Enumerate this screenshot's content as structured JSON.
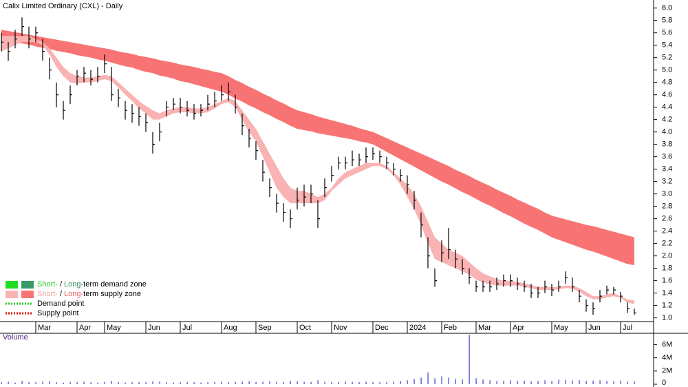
{
  "chart_data": {
    "type": "candlestick",
    "title": "Calix Limited Ordinary (CXL) - Daily",
    "categories": [
      null,
      null,
      null,
      null,
      null,
      "Mar",
      null,
      null,
      null,
      null,
      null,
      "Apr",
      null,
      null,
      null,
      "May",
      null,
      null,
      null,
      null,
      null,
      "Jun",
      null,
      null,
      null,
      null,
      "Jul",
      null,
      null,
      null,
      null,
      null,
      "Aug",
      null,
      null,
      null,
      null,
      "Sep",
      null,
      null,
      null,
      null,
      null,
      "Oct",
      null,
      null,
      null,
      null,
      "Nov",
      null,
      null,
      null,
      null,
      null,
      "Dec",
      null,
      null,
      null,
      null,
      "2024",
      null,
      null,
      null,
      null,
      "Feb",
      null,
      null,
      null,
      null,
      "Mar",
      null,
      null,
      null,
      null,
      "Apr",
      null,
      null,
      null,
      null,
      null,
      "May",
      null,
      null,
      null,
      null,
      "Jun",
      null,
      null,
      null,
      null,
      "Jul",
      null,
      null
    ],
    "price": {
      "color": "#000000",
      "high": [
        5.6,
        5.45,
        5.65,
        5.85,
        5.7,
        5.7,
        5.5,
        5.2,
        4.8,
        4.5,
        4.75,
        5.0,
        5.05,
        5.0,
        5.05,
        5.25,
        5.05,
        4.7,
        4.5,
        4.45,
        4.4,
        4.3,
        4.0,
        4.15,
        4.5,
        4.55,
        4.55,
        4.5,
        4.45,
        4.45,
        4.6,
        4.65,
        4.75,
        4.8,
        4.6,
        4.3,
        4.05,
        3.85,
        3.55,
        3.25,
        3.0,
        2.85,
        2.75,
        3.1,
        3.15,
        3.15,
        2.9,
        3.25,
        3.45,
        3.6,
        3.6,
        3.7,
        3.65,
        3.75,
        3.75,
        3.7,
        3.6,
        3.5,
        3.4,
        3.3,
        3.05,
        2.7,
        2.3,
        1.8,
        2.25,
        2.45,
        2.1,
        1.95,
        1.8,
        1.6,
        1.6,
        1.6,
        1.65,
        1.7,
        1.7,
        1.65,
        1.6,
        1.55,
        1.5,
        1.6,
        1.55,
        1.6,
        1.75,
        1.65,
        1.45,
        1.3,
        1.25,
        1.45,
        1.52,
        1.5,
        1.42,
        1.25,
        1.15
      ],
      "low": [
        5.3,
        5.15,
        5.35,
        5.55,
        5.35,
        5.45,
        5.15,
        4.85,
        4.4,
        4.2,
        4.45,
        4.75,
        4.8,
        4.75,
        4.8,
        4.95,
        4.5,
        4.4,
        4.2,
        4.15,
        4.1,
        4.0,
        3.65,
        3.85,
        4.25,
        4.35,
        4.3,
        4.25,
        4.2,
        4.25,
        4.35,
        4.4,
        4.5,
        4.5,
        4.3,
        3.95,
        3.75,
        3.55,
        3.2,
        2.95,
        2.7,
        2.55,
        2.45,
        2.75,
        2.8,
        2.85,
        2.45,
        2.95,
        3.2,
        3.4,
        3.4,
        3.45,
        3.45,
        3.5,
        3.55,
        3.5,
        3.4,
        3.3,
        3.2,
        3.0,
        2.75,
        2.3,
        1.8,
        1.5,
        1.9,
        1.95,
        1.8,
        1.7,
        1.55,
        1.42,
        1.42,
        1.42,
        1.45,
        1.5,
        1.5,
        1.45,
        1.42,
        1.32,
        1.32,
        1.4,
        1.35,
        1.42,
        1.55,
        1.42,
        1.25,
        1.1,
        1.05,
        1.25,
        1.38,
        1.38,
        1.25,
        1.08,
        1.05
      ],
      "close": [
        5.45,
        5.3,
        5.5,
        5.7,
        5.5,
        5.6,
        5.3,
        5.0,
        4.6,
        4.35,
        4.6,
        4.9,
        4.95,
        4.85,
        4.9,
        5.1,
        4.6,
        4.55,
        4.35,
        4.3,
        4.25,
        4.15,
        3.8,
        4.0,
        4.4,
        4.45,
        4.4,
        4.35,
        4.3,
        4.35,
        4.45,
        4.5,
        4.6,
        4.65,
        4.4,
        4.1,
        3.9,
        3.7,
        3.35,
        3.1,
        2.85,
        2.7,
        2.6,
        2.9,
        2.95,
        3.0,
        2.6,
        3.1,
        3.3,
        3.5,
        3.5,
        3.55,
        3.55,
        3.6,
        3.65,
        3.6,
        3.5,
        3.4,
        3.3,
        3.15,
        2.9,
        2.5,
        2.0,
        1.6,
        2.05,
        2.1,
        1.95,
        1.8,
        1.65,
        1.5,
        1.5,
        1.5,
        1.55,
        1.6,
        1.6,
        1.55,
        1.5,
        1.4,
        1.4,
        1.5,
        1.45,
        1.5,
        1.65,
        1.5,
        1.35,
        1.2,
        1.15,
        1.35,
        1.45,
        1.45,
        1.35,
        1.15,
        1.08
      ]
    },
    "long_term_zone": {
      "color": "#f87474",
      "upper": [
        5.65,
        5.63,
        5.61,
        5.59,
        5.57,
        5.55,
        5.53,
        5.51,
        5.49,
        5.47,
        5.45,
        5.43,
        5.41,
        5.39,
        5.37,
        5.35,
        5.33,
        5.3,
        5.28,
        5.26,
        5.23,
        5.21,
        5.19,
        5.16,
        5.14,
        5.12,
        5.09,
        5.07,
        5.05,
        5.02,
        5.0,
        4.97,
        4.95,
        4.9,
        4.84,
        4.79,
        4.73,
        4.68,
        4.62,
        4.57,
        4.51,
        4.46,
        4.4,
        4.35,
        4.32,
        4.29,
        4.25,
        4.22,
        4.19,
        4.16,
        4.13,
        4.1,
        4.06,
        4.03,
        4.0,
        3.95,
        3.9,
        3.85,
        3.8,
        3.75,
        3.7,
        3.65,
        3.6,
        3.55,
        3.5,
        3.45,
        3.39,
        3.34,
        3.29,
        3.23,
        3.18,
        3.13,
        3.07,
        3.02,
        2.97,
        2.91,
        2.86,
        2.81,
        2.76,
        2.7,
        2.65,
        2.62,
        2.59,
        2.56,
        2.53,
        2.5,
        2.48,
        2.45,
        2.42,
        2.39,
        2.36,
        2.33,
        2.3
      ],
      "lower": [
        5.5,
        5.48,
        5.45,
        5.43,
        5.41,
        5.38,
        5.36,
        5.34,
        5.31,
        5.29,
        5.27,
        5.24,
        5.22,
        5.2,
        5.17,
        5.15,
        5.12,
        5.09,
        5.06,
        5.04,
        5.0,
        4.97,
        4.95,
        4.91,
        4.89,
        4.86,
        4.82,
        4.8,
        4.77,
        4.74,
        4.71,
        4.68,
        4.65,
        4.6,
        4.54,
        4.49,
        4.43,
        4.38,
        4.32,
        4.27,
        4.21,
        4.16,
        4.1,
        4.05,
        4.03,
        4.01,
        3.98,
        3.96,
        3.94,
        3.92,
        3.9,
        3.88,
        3.85,
        3.83,
        3.8,
        3.74,
        3.68,
        3.62,
        3.56,
        3.5,
        3.44,
        3.38,
        3.32,
        3.26,
        3.2,
        3.15,
        3.09,
        3.03,
        2.98,
        2.92,
        2.86,
        2.81,
        2.75,
        2.69,
        2.64,
        2.58,
        2.52,
        2.47,
        2.42,
        2.36,
        2.3,
        2.26,
        2.22,
        2.18,
        2.14,
        2.1,
        2.07,
        2.03,
        1.99,
        1.95,
        1.91,
        1.87,
        1.85
      ]
    },
    "short_term_zone": {
      "color": "#f9b3b3",
      "upper": [
        5.55,
        5.55,
        5.55,
        5.55,
        5.55,
        5.5,
        5.45,
        5.35,
        5.2,
        5.05,
        4.95,
        4.9,
        4.88,
        4.88,
        4.9,
        4.92,
        4.9,
        4.8,
        4.7,
        4.6,
        4.5,
        4.42,
        4.35,
        4.3,
        4.35,
        4.38,
        4.4,
        4.4,
        4.38,
        4.38,
        4.4,
        4.45,
        4.5,
        4.55,
        4.5,
        4.35,
        4.2,
        4.05,
        3.85,
        3.65,
        3.45,
        3.25,
        3.1,
        3.05,
        3.05,
        3.0,
        2.95,
        3.0,
        3.1,
        3.25,
        3.35,
        3.4,
        3.45,
        3.5,
        3.5,
        3.5,
        3.45,
        3.35,
        3.25,
        3.15,
        3.0,
        2.8,
        2.55,
        2.3,
        2.2,
        2.1,
        2.05,
        2.0,
        1.9,
        1.8,
        1.72,
        1.67,
        1.63,
        1.6,
        1.6,
        1.58,
        1.56,
        1.53,
        1.5,
        1.5,
        1.5,
        1.5,
        1.52,
        1.52,
        1.48,
        1.42,
        1.35,
        1.35,
        1.38,
        1.4,
        1.35,
        1.3,
        1.28
      ],
      "lower": [
        5.3,
        5.35,
        5.4,
        5.45,
        5.45,
        5.45,
        5.4,
        5.25,
        5.05,
        4.9,
        4.8,
        4.78,
        4.8,
        4.8,
        4.82,
        4.85,
        4.82,
        4.72,
        4.6,
        4.5,
        4.38,
        4.3,
        4.2,
        4.2,
        4.25,
        4.3,
        4.32,
        4.32,
        4.3,
        4.3,
        4.32,
        4.38,
        4.45,
        4.48,
        4.4,
        4.2,
        4.0,
        3.85,
        3.6,
        3.35,
        3.1,
        2.95,
        2.85,
        2.85,
        2.85,
        2.85,
        2.85,
        2.9,
        3.05,
        3.15,
        3.25,
        3.3,
        3.35,
        3.4,
        3.45,
        3.45,
        3.4,
        3.3,
        3.15,
        2.95,
        2.75,
        2.5,
        2.2,
        1.95,
        1.9,
        1.85,
        1.8,
        1.75,
        1.7,
        1.62,
        1.57,
        1.54,
        1.52,
        1.52,
        1.52,
        1.52,
        1.5,
        1.48,
        1.45,
        1.45,
        1.45,
        1.46,
        1.48,
        1.47,
        1.42,
        1.35,
        1.3,
        1.3,
        1.33,
        1.35,
        1.32,
        1.25,
        1.22
      ]
    },
    "ylim": [
      0.94,
      6.13
    ],
    "yticks": [
      {
        "value": 1,
        "label": "1.0"
      },
      1.2,
      1.4,
      1.6,
      1.8,
      {
        "value": 2,
        "label": "2.0"
      },
      2.2,
      2.4,
      2.6,
      2.8,
      {
        "value": 3,
        "label": "3.0"
      },
      3.2,
      3.4,
      3.6,
      3.8,
      {
        "value": 4,
        "label": "4.0"
      },
      4.2,
      4.4,
      4.6,
      4.8,
      {
        "value": 5,
        "label": "5.0"
      },
      5.2,
      5.4,
      5.6,
      5.8,
      {
        "value": 6,
        "label": "6.0"
      }
    ],
    "volume": {
      "title": "Volume",
      "color": "#5a5ad6",
      "values": [
        300000,
        400000,
        250000,
        500000,
        350000,
        300000,
        400000,
        450000,
        300000,
        250000,
        350000,
        300000,
        400000,
        300000,
        250000,
        350000,
        500000,
        300000,
        250000,
        300000,
        350000,
        300000,
        450000,
        400000,
        300000,
        250000,
        300000,
        350000,
        300000,
        250000,
        300000,
        350000,
        400000,
        300000,
        350000,
        400000,
        450000,
        350000,
        400000,
        450000,
        400000,
        350000,
        500000,
        450000,
        400000,
        350000,
        600000,
        400000,
        350000,
        300000,
        400000,
        350000,
        300000,
        400000,
        350000,
        300000,
        350000,
        400000,
        500000,
        600000,
        800000,
        1000000,
        1800000,
        900000,
        1200000,
        1000000,
        800000,
        700000,
        7500000,
        900000,
        700000,
        600000,
        500000,
        550000,
        600000,
        500000,
        550000,
        450000,
        500000,
        600000,
        500000,
        700000,
        650000,
        550000,
        600000,
        500000,
        550000,
        600000,
        500000,
        450000,
        550000,
        400000,
        450000
      ],
      "ylim": [
        0,
        7500000
      ],
      "yticks": [
        0,
        {
          "value": 2000000,
          "label": "2M"
        },
        {
          "value": 4000000,
          "label": "4M"
        },
        {
          "value": 6000000,
          "label": "6M"
        }
      ]
    },
    "legend": [
      {
        "swatches": [
          "#22dd22",
          "#3a9a6a"
        ],
        "parts": [
          {
            "text": "Short-",
            "color": "#22cc22"
          },
          {
            "text": "/",
            "color": "#000000"
          },
          {
            "text": "Long-",
            "color": "#2e8b57"
          },
          {
            "text": "term demand zone",
            "color": "#000000"
          }
        ]
      },
      {
        "swatches": [
          "#f9b3b3",
          "#f87474"
        ],
        "parts": [
          {
            "text": "Short-",
            "color": "#f4a0a0"
          },
          {
            "text": "/",
            "color": "#000000"
          },
          {
            "text": "Long-",
            "color": "#f06060"
          },
          {
            "text": "term supply zone",
            "color": "#000000"
          }
        ]
      },
      {
        "dotted": "#22cc22",
        "parts": [
          {
            "text": "Demand point",
            "color": "#000000"
          }
        ]
      },
      {
        "dotted": "#dd0000",
        "parts": [
          {
            "text": "Supply point",
            "color": "#000000"
          }
        ]
      }
    ]
  }
}
